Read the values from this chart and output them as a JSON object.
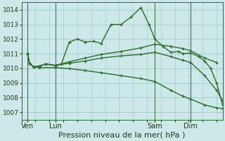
{
  "background_color": "#cce8e8",
  "grid_color": "#aacccc",
  "line_color": "#2d6a2d",
  "ylim": [
    1006.5,
    1014.5
  ],
  "yticks": [
    1007,
    1008,
    1009,
    1010,
    1011,
    1012,
    1013,
    1014
  ],
  "xlabel": "Pression niveau de la mer( hPa )",
  "xlabel_fontsize": 8,
  "marker": "+",
  "markersize": 3,
  "linewidth": 1.0,
  "xtick_labels": [
    "Ven",
    "Lun",
    "Sam",
    "Dim"
  ],
  "xtick_positions": [
    2,
    16,
    66,
    84
  ],
  "vlines": [
    2,
    16,
    66,
    84
  ],
  "xlim": [
    -1,
    100
  ],
  "lines": [
    [
      2,
      1011.0,
      3,
      1010.35,
      5,
      1010.1,
      8,
      1010.15,
      11,
      1010.3,
      16,
      1010.2,
      19,
      1010.3,
      23,
      1011.8,
      27,
      1012.0,
      31,
      1011.8,
      35,
      1011.85,
      39,
      1011.7,
      44,
      1013.0,
      49,
      1013.0,
      54,
      1013.5,
      59,
      1014.15,
      63,
      1013.0,
      66,
      1012.0,
      70,
      1011.5,
      74,
      1011.1,
      78,
      1011.15,
      80,
      1011.0,
      84,
      1011.05,
      88,
      1010.8,
      91,
      1010.5,
      94,
      1010.0,
      97,
      1009.0,
      100,
      1007.5
    ],
    [
      2,
      1011.0,
      3,
      1010.35,
      5,
      1010.1,
      8,
      1010.15,
      11,
      1010.3,
      16,
      1010.2,
      23,
      1010.45,
      31,
      1010.7,
      39,
      1010.95,
      49,
      1011.15,
      59,
      1011.4,
      66,
      1011.65,
      74,
      1011.5,
      80,
      1011.35,
      84,
      1011.2,
      91,
      1010.7,
      97,
      1010.4
    ],
    [
      2,
      1011.0,
      3,
      1010.35,
      5,
      1010.1,
      8,
      1010.15,
      11,
      1010.3,
      16,
      1010.2,
      23,
      1010.35,
      31,
      1010.5,
      39,
      1010.7,
      49,
      1010.85,
      59,
      1010.95,
      66,
      1011.1,
      74,
      1010.8,
      80,
      1010.55,
      84,
      1010.4,
      91,
      1009.5,
      97,
      1008.5,
      100,
      1007.8
    ],
    [
      2,
      1011.0,
      3,
      1010.35,
      5,
      1010.1,
      8,
      1010.05,
      16,
      1010.05,
      23,
      1009.98,
      31,
      1009.85,
      39,
      1009.7,
      49,
      1009.5,
      59,
      1009.3,
      66,
      1009.1,
      74,
      1008.5,
      80,
      1008.1,
      84,
      1007.9,
      91,
      1007.5,
      97,
      1007.3,
      100,
      1007.25
    ]
  ]
}
